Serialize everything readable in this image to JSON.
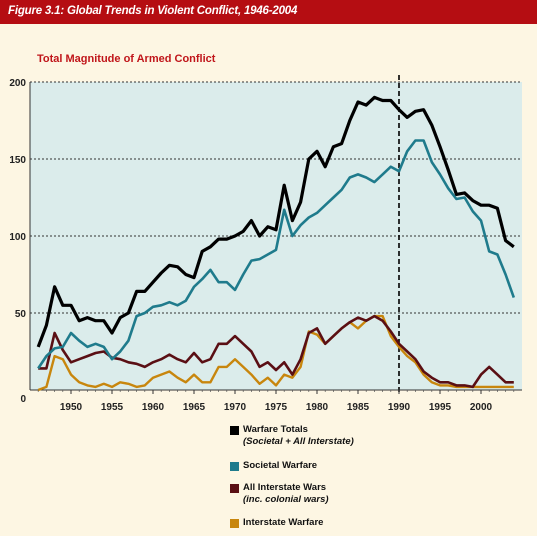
{
  "figure_title": "Figure 3.1: Global Trends in Violent Conflict, 1946-2004",
  "chart_data": {
    "type": "line",
    "title": "Total Magnitude of Armed Conflict",
    "xlabel": "",
    "ylabel": "",
    "xlim": [
      1945,
      2005
    ],
    "ylim": [
      0,
      200
    ],
    "grid": true,
    "reference_line_x": 1990,
    "x_ticks": [
      1950,
      1955,
      1960,
      1965,
      1970,
      1975,
      1980,
      1985,
      1990,
      1995,
      2000
    ],
    "y_ticks": [
      0,
      50,
      100,
      150,
      200
    ],
    "x_tick_labels": [
      "1950",
      "1955",
      "1960",
      "1965",
      "1970",
      "1975",
      "1980",
      "1985",
      "1990",
      "1995",
      "2000"
    ],
    "y_tick_labels": [
      "0",
      "50",
      "100",
      "150",
      "200"
    ],
    "legend_position": "bottom",
    "x": [
      1946,
      1947,
      1948,
      1949,
      1950,
      1951,
      1952,
      1953,
      1954,
      1955,
      1956,
      1957,
      1958,
      1959,
      1960,
      1961,
      1962,
      1963,
      1964,
      1965,
      1966,
      1967,
      1968,
      1969,
      1970,
      1971,
      1972,
      1973,
      1974,
      1975,
      1976,
      1977,
      1978,
      1979,
      1980,
      1981,
      1982,
      1983,
      1984,
      1985,
      1986,
      1987,
      1988,
      1989,
      1990,
      1991,
      1992,
      1993,
      1994,
      1995,
      1996,
      1997,
      1998,
      1999,
      2000,
      2001,
      2002,
      2003,
      2004
    ],
    "series": [
      {
        "name": "Warfare Totals",
        "subtitle": "(Societal + All Interstate)",
        "color": "#000000",
        "values": [
          28,
          42,
          67,
          55,
          55,
          45,
          47,
          45,
          45,
          37,
          47,
          50,
          64,
          64,
          70,
          76,
          81,
          80,
          75,
          73,
          90,
          93,
          98,
          98,
          100,
          103,
          110,
          100,
          106,
          104,
          133,
          110,
          122,
          150,
          155,
          145,
          158,
          160,
          175,
          187,
          185,
          190,
          188,
          188,
          182,
          177,
          181,
          182,
          172,
          158,
          143,
          127,
          128,
          123,
          120,
          120,
          118,
          97,
          93
        ]
      },
      {
        "name": "Societal Warfare",
        "color": "#1f7b8c",
        "values": [
          14,
          22,
          27,
          28,
          37,
          32,
          28,
          30,
          28,
          20,
          25,
          32,
          48,
          50,
          54,
          55,
          57,
          55,
          58,
          67,
          72,
          78,
          70,
          70,
          65,
          75,
          84,
          85,
          88,
          91,
          117,
          100,
          107,
          112,
          115,
          120,
          125,
          130,
          138,
          140,
          138,
          135,
          140,
          145,
          142,
          155,
          162,
          162,
          148,
          140,
          131,
          124,
          125,
          116,
          110,
          90,
          88,
          75,
          60
        ]
      },
      {
        "name": "All Interstate Wars",
        "subtitle": "(inc. colonial wars)",
        "color": "#5a0f14",
        "values": [
          14,
          14,
          37,
          26,
          18,
          20,
          22,
          24,
          25,
          21,
          20,
          18,
          17,
          15,
          18,
          20,
          23,
          20,
          18,
          24,
          18,
          20,
          30,
          30,
          35,
          30,
          25,
          15,
          18,
          13,
          18,
          10,
          20,
          37,
          40,
          30,
          35,
          40,
          44,
          47,
          45,
          48,
          45,
          38,
          30,
          25,
          20,
          12,
          8,
          5,
          5,
          3,
          3,
          2,
          10,
          15,
          10,
          5,
          5
        ]
      },
      {
        "name": "Interstate Warfare",
        "color": "#c8860d",
        "values": [
          0,
          2,
          22,
          20,
          10,
          5,
          3,
          2,
          4,
          2,
          5,
          4,
          2,
          3,
          8,
          10,
          12,
          8,
          5,
          10,
          5,
          5,
          15,
          15,
          20,
          15,
          10,
          4,
          8,
          3,
          10,
          8,
          15,
          38,
          36,
          30,
          35,
          40,
          44,
          40,
          45,
          48,
          48,
          35,
          28,
          22,
          18,
          10,
          5,
          3,
          3,
          2,
          2,
          2,
          2,
          2,
          2,
          2,
          2
        ]
      }
    ]
  }
}
